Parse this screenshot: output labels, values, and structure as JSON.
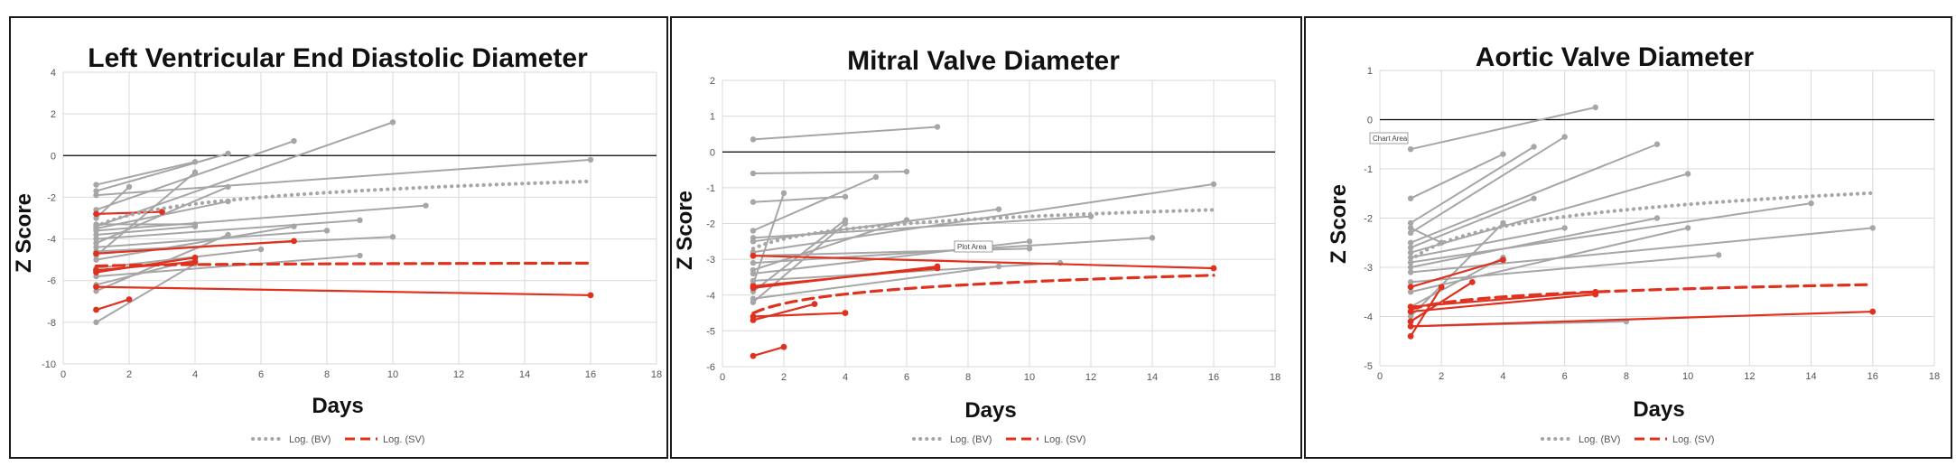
{
  "colors": {
    "bv": "#a6a6a6",
    "sv": "#e0301e",
    "grid": "#d9d9d9",
    "zero": "#000000"
  },
  "chart_data": [
    {
      "type": "line",
      "title": "Left Ventricular End Diastolic Diameter",
      "xlabel": "Days",
      "ylabel": "Z Score",
      "xlim": [
        0,
        18
      ],
      "ylim": [
        -10,
        4
      ],
      "xticks": [
        0,
        2,
        4,
        6,
        8,
        10,
        12,
        14,
        16,
        18
      ],
      "yticks": [
        -10,
        -8,
        -6,
        -4,
        -2,
        0,
        2,
        4
      ],
      "grid": true,
      "legend": {
        "position": "bottom",
        "entries": [
          "Log. (BV)",
          "Log. (SV)"
        ]
      },
      "bv_series": [
        [
          [
            1,
            -1.4
          ],
          [
            4,
            -0.3
          ]
        ],
        [
          [
            1,
            -1.7
          ],
          [
            5,
            0.1
          ]
        ],
        [
          [
            1,
            -2.6
          ],
          [
            7,
            0.7
          ]
        ],
        [
          [
            1,
            -3.4
          ],
          [
            10,
            1.6
          ]
        ],
        [
          [
            1,
            -1.9
          ],
          [
            16,
            -0.2
          ]
        ],
        [
          [
            1,
            -3.6
          ],
          [
            11,
            -2.4
          ]
        ],
        [
          [
            1,
            -4.0
          ],
          [
            9,
            -3.1
          ]
        ],
        [
          [
            1,
            -4.6
          ],
          [
            10,
            -3.9
          ]
        ],
        [
          [
            1,
            -5.0
          ],
          [
            7,
            -3.4
          ]
        ],
        [
          [
            1,
            -6.5
          ],
          [
            5,
            -3.8
          ]
        ],
        [
          [
            1,
            -8.0
          ],
          [
            4,
            -5.2
          ]
        ],
        [
          [
            1,
            -3.3
          ],
          [
            4,
            -3.3
          ]
        ],
        [
          [
            1,
            -4.2
          ],
          [
            5,
            -1.5
          ]
        ],
        [
          [
            1,
            -5.4
          ],
          [
            6,
            -4.5
          ]
        ],
        [
          [
            1,
            -3.0
          ],
          [
            2,
            -1.5
          ]
        ],
        [
          [
            1,
            -3.8
          ],
          [
            4,
            -3.4
          ]
        ],
        [
          [
            1,
            -5.8
          ],
          [
            9,
            -4.8
          ]
        ],
        [
          [
            1,
            -4.4
          ],
          [
            8,
            -3.6
          ]
        ],
        [
          [
            1,
            -6.2
          ],
          [
            4,
            -5.0
          ]
        ],
        [
          [
            1,
            -4.8
          ],
          [
            4,
            -0.8
          ]
        ],
        [
          [
            1,
            -3.5
          ],
          [
            5,
            -2.2
          ]
        ]
      ],
      "sv_series": [
        [
          [
            1,
            -2.8
          ],
          [
            3,
            -2.7
          ]
        ],
        [
          [
            1,
            -4.7
          ],
          [
            7,
            -4.1
          ]
        ],
        [
          [
            1,
            -5.6
          ],
          [
            4,
            -4.9
          ]
        ],
        [
          [
            1,
            -6.3
          ],
          [
            16,
            -6.7
          ]
        ],
        [
          [
            1,
            -7.4
          ],
          [
            2,
            -6.9
          ]
        ],
        [
          [
            1,
            -5.5
          ],
          [
            4,
            -5.1
          ]
        ]
      ],
      "trend_bv": {
        "a": -3.4,
        "b": 0.78
      },
      "trend_sv": {
        "a": -5.3,
        "b": 0.05
      }
    },
    {
      "type": "line",
      "title": "Mitral Valve Diameter",
      "xlabel": "Days",
      "ylabel": "Z Score",
      "xlim": [
        0,
        18
      ],
      "ylim": [
        -6,
        2
      ],
      "xticks": [
        0,
        2,
        4,
        6,
        8,
        10,
        12,
        14,
        16,
        18
      ],
      "yticks": [
        -6,
        -5,
        -4,
        -3,
        -2,
        -1,
        0,
        1,
        2
      ],
      "grid": true,
      "legend": {
        "position": "bottom",
        "entries": [
          "Log. (BV)",
          "Log. (SV)"
        ]
      },
      "tooltip": "Plot Area",
      "bv_series": [
        [
          [
            1,
            0.35
          ],
          [
            7,
            0.7
          ]
        ],
        [
          [
            1,
            -0.6
          ],
          [
            6,
            -0.55
          ]
        ],
        [
          [
            1,
            -1.4
          ],
          [
            4,
            -1.25
          ]
        ],
        [
          [
            1,
            -2.2
          ],
          [
            5,
            -0.7
          ]
        ],
        [
          [
            1,
            -2.5
          ],
          [
            9,
            -1.6
          ]
        ],
        [
          [
            1,
            -2.8
          ],
          [
            16,
            -0.9
          ]
        ],
        [
          [
            1,
            -3.1
          ],
          [
            14,
            -2.4
          ]
        ],
        [
          [
            1,
            -3.4
          ],
          [
            10,
            -2.5
          ]
        ],
        [
          [
            1,
            -3.7
          ],
          [
            2,
            -1.15
          ]
        ],
        [
          [
            1,
            -2.4
          ],
          [
            12,
            -1.8
          ]
        ],
        [
          [
            1,
            -3.9
          ],
          [
            4,
            -1.9
          ]
        ],
        [
          [
            1,
            -4.1
          ],
          [
            9,
            -3.2
          ]
        ],
        [
          [
            1,
            -3.3
          ],
          [
            6,
            -1.9
          ]
        ],
        [
          [
            1,
            -2.9
          ],
          [
            10,
            -2.7
          ]
        ],
        [
          [
            1,
            -3.6
          ],
          [
            11,
            -3.1
          ]
        ],
        [
          [
            1,
            -4.2
          ],
          [
            4,
            -2.0
          ]
        ]
      ],
      "sv_series": [
        [
          [
            1,
            -2.9
          ],
          [
            16,
            -3.25
          ]
        ],
        [
          [
            1,
            -3.75
          ],
          [
            7,
            -3.25
          ]
        ],
        [
          [
            1,
            -4.6
          ],
          [
            4,
            -4.5
          ]
        ],
        [
          [
            1,
            -4.7
          ],
          [
            3,
            -4.25
          ]
        ],
        [
          [
            1,
            -5.7
          ],
          [
            2,
            -5.45
          ]
        ],
        [
          [
            1,
            -3.8
          ],
          [
            7,
            -3.2
          ]
        ]
      ],
      "trend_bv": {
        "a": -2.7,
        "b": 0.39
      },
      "trend_sv": {
        "a": -4.5,
        "b": 0.38
      }
    },
    {
      "type": "line",
      "title": "Aortic Valve Diameter",
      "xlabel": "Days",
      "ylabel": "Z Score",
      "xlim": [
        0,
        18
      ],
      "ylim": [
        -5,
        1
      ],
      "xticks": [
        0,
        2,
        4,
        6,
        8,
        10,
        12,
        14,
        16,
        18
      ],
      "yticks": [
        -5,
        -4,
        -3,
        -2,
        -1,
        0,
        1
      ],
      "grid": true,
      "legend": {
        "position": "bottom",
        "entries": [
          "Log. (BV)",
          "Log. (SV)"
        ]
      },
      "tooltip": "Chart Area",
      "bv_series": [
        [
          [
            1,
            -0.6
          ],
          [
            7,
            0.25
          ]
        ],
        [
          [
            1,
            -1.6
          ],
          [
            4,
            -0.7
          ]
        ],
        [
          [
            1,
            -2.1
          ],
          [
            5,
            -0.55
          ]
        ],
        [
          [
            1,
            -2.3
          ],
          [
            6,
            -0.35
          ]
        ],
        [
          [
            1,
            -2.5
          ],
          [
            9,
            -0.5
          ]
        ],
        [
          [
            1,
            -2.7
          ],
          [
            10,
            -1.1
          ]
        ],
        [
          [
            1,
            -2.9
          ],
          [
            14,
            -1.7
          ]
        ],
        [
          [
            1,
            -3.1
          ],
          [
            16,
            -2.2
          ]
        ],
        [
          [
            1,
            -3.3
          ],
          [
            11,
            -2.75
          ]
        ],
        [
          [
            1,
            -2.6
          ],
          [
            5,
            -1.6
          ]
        ],
        [
          [
            1,
            -3.8
          ],
          [
            4,
            -2.8
          ]
        ],
        [
          [
            1,
            -4.2
          ],
          [
            8,
            -4.1
          ]
        ],
        [
          [
            1,
            -2.8
          ],
          [
            6,
            -2.2
          ]
        ],
        [
          [
            1,
            -3.0
          ],
          [
            9,
            -2.0
          ]
        ],
        [
          [
            1,
            -3.5
          ],
          [
            10,
            -2.2
          ]
        ],
        [
          [
            1,
            -4.0
          ],
          [
            4,
            -2.1
          ]
        ],
        [
          [
            1,
            -2.2
          ],
          [
            2,
            -2.5
          ]
        ]
      ],
      "sv_series": [
        [
          [
            1,
            -3.4
          ],
          [
            4,
            -2.85
          ]
        ],
        [
          [
            1,
            -3.9
          ],
          [
            7,
            -3.55
          ]
        ],
        [
          [
            1,
            -4.2
          ],
          [
            16,
            -3.9
          ]
        ],
        [
          [
            1,
            -4.4
          ],
          [
            2,
            -3.4
          ]
        ],
        [
          [
            1,
            -4.1
          ],
          [
            3,
            -3.3
          ]
        ],
        [
          [
            1,
            -3.8
          ],
          [
            7,
            -3.5
          ]
        ]
      ],
      "trend_bv": {
        "a": -2.85,
        "b": 0.49
      },
      "trend_sv": {
        "a": -3.85,
        "b": 0.18
      }
    }
  ]
}
